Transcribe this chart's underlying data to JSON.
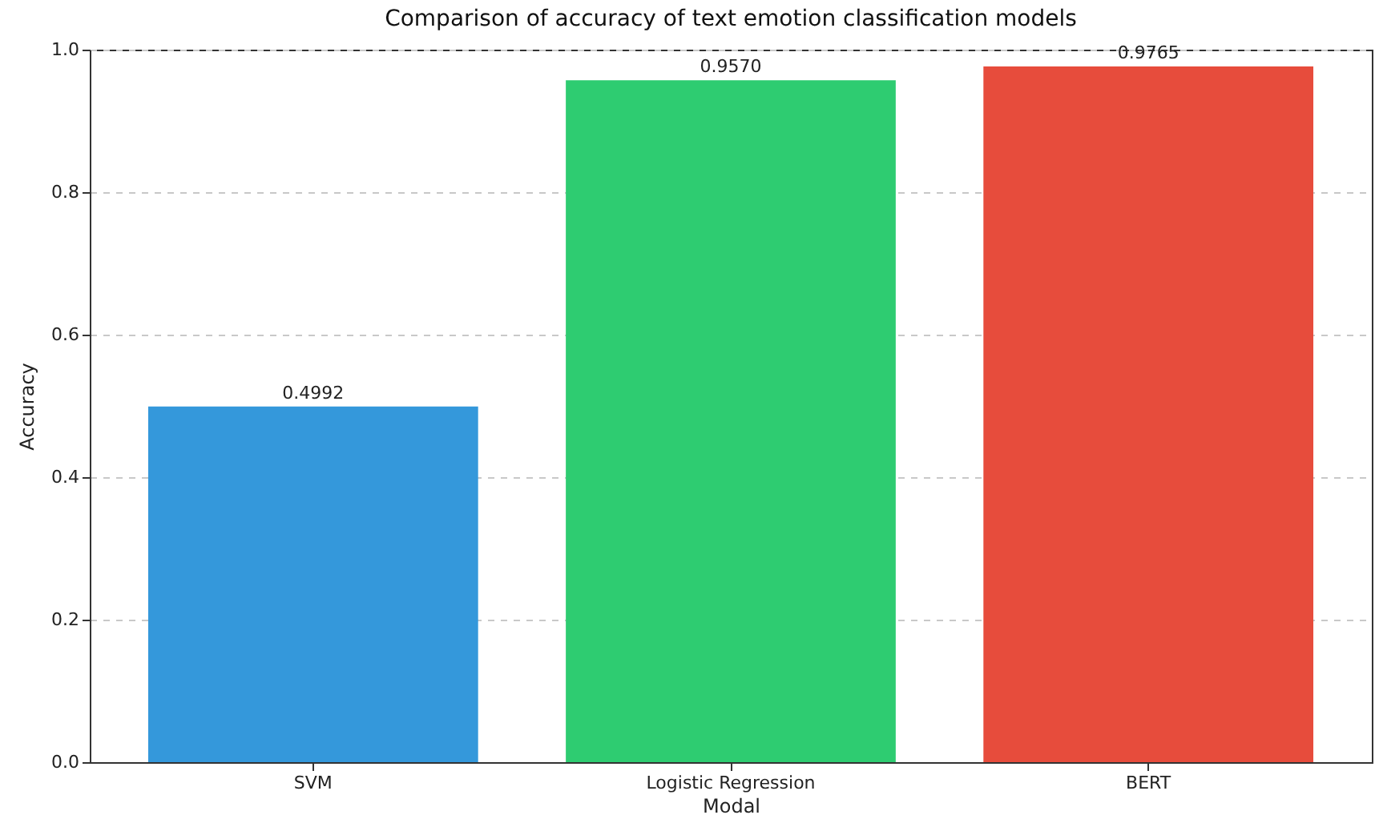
{
  "chart_data": {
    "type": "bar",
    "title": "Comparison of accuracy of text emotion classification models",
    "xlabel": "Modal",
    "ylabel": "Accuracy",
    "categories": [
      "SVM",
      "Logistic Regression",
      "BERT"
    ],
    "values": [
      0.4992,
      0.957,
      0.9765
    ],
    "value_labels": [
      "0.4992",
      "0.9570",
      "0.9765"
    ],
    "colors": [
      "#3498db",
      "#2ecc71",
      "#e74c3c"
    ],
    "ylim": [
      0,
      1
    ],
    "yticks": [
      {
        "value": 0,
        "label": "0.0"
      },
      0.2,
      0.4,
      0.6,
      0.8,
      {
        "value": 1,
        "label": "1.0"
      }
    ],
    "grid": "y"
  }
}
